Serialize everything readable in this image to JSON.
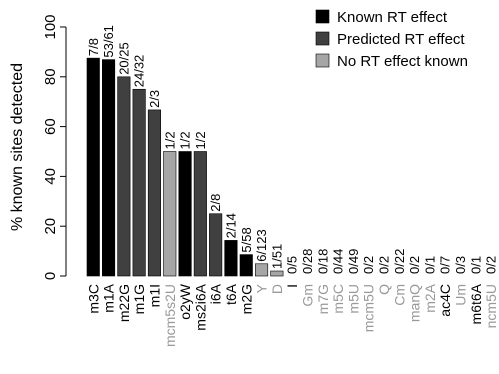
{
  "colors": {
    "known": "#000000",
    "predicted": "#404040",
    "none": "#a6a6a6",
    "axis": "#000000",
    "label_dark": "#000000",
    "label_light": "#999999"
  },
  "chart_data": {
    "type": "bar",
    "title": "",
    "xlabel": "",
    "ylabel": "% known sites detected",
    "ylim": [
      0,
      100
    ],
    "yticks": [
      0,
      20,
      40,
      60,
      80,
      100
    ],
    "grid": false,
    "legend_position": "top-right",
    "legend": [
      {
        "label": "Known RT effect",
        "color_key": "known"
      },
      {
        "label": "Predicted RT effect",
        "color_key": "predicted"
      },
      {
        "label": "No RT effect known",
        "color_key": "none"
      }
    ],
    "categories": [
      "m3C",
      "m1A",
      "m22G",
      "m1G",
      "m1I",
      "mcm5s2U",
      "o2yW",
      "ms2i6A",
      "i6A",
      "t6A",
      "m2G",
      "Y",
      "D",
      "I",
      "Gm",
      "m7G",
      "m5C",
      "m5U",
      "mcm5U",
      "Q",
      "Cm",
      "manQ",
      "m2A",
      "ac4C",
      "Um",
      "m6t6A",
      "ncm5U"
    ],
    "values": [
      87.5,
      86.9,
      80,
      75,
      66.7,
      50,
      50,
      50,
      25,
      14.3,
      8.6,
      4.9,
      2,
      0,
      0,
      0,
      0,
      0,
      0,
      0,
      0,
      0,
      0,
      0,
      0,
      0,
      0
    ],
    "bar_labels": [
      "7/8",
      "53/61",
      "20/25",
      "24/32",
      "2/3",
      "1/2",
      "1/2",
      "1/2",
      "2/8",
      "2/14",
      "5/58",
      "6/123",
      "1/51",
      "0/5",
      "0/28",
      "0/18",
      "0/44",
      "0/49",
      "0/2",
      "0/2",
      "0/22",
      "0/2",
      "0/1",
      "0/7",
      "0/3",
      "0/1",
      "0/2"
    ],
    "effect_class": [
      "known",
      "known",
      "predicted",
      "predicted",
      "predicted",
      "none",
      "known",
      "predicted",
      "predicted",
      "known",
      "known",
      "none",
      "none",
      "known",
      "none",
      "none",
      "none",
      "none",
      "none",
      "none",
      "none",
      "none",
      "none",
      "known",
      "none",
      "known",
      "none"
    ],
    "label_shade": [
      "dark",
      "dark",
      "dark",
      "dark",
      "dark",
      "light",
      "dark",
      "dark",
      "dark",
      "dark",
      "dark",
      "light",
      "light",
      "dark",
      "light",
      "light",
      "light",
      "light",
      "light",
      "light",
      "light",
      "light",
      "light",
      "dark",
      "light",
      "dark",
      "light"
    ]
  }
}
